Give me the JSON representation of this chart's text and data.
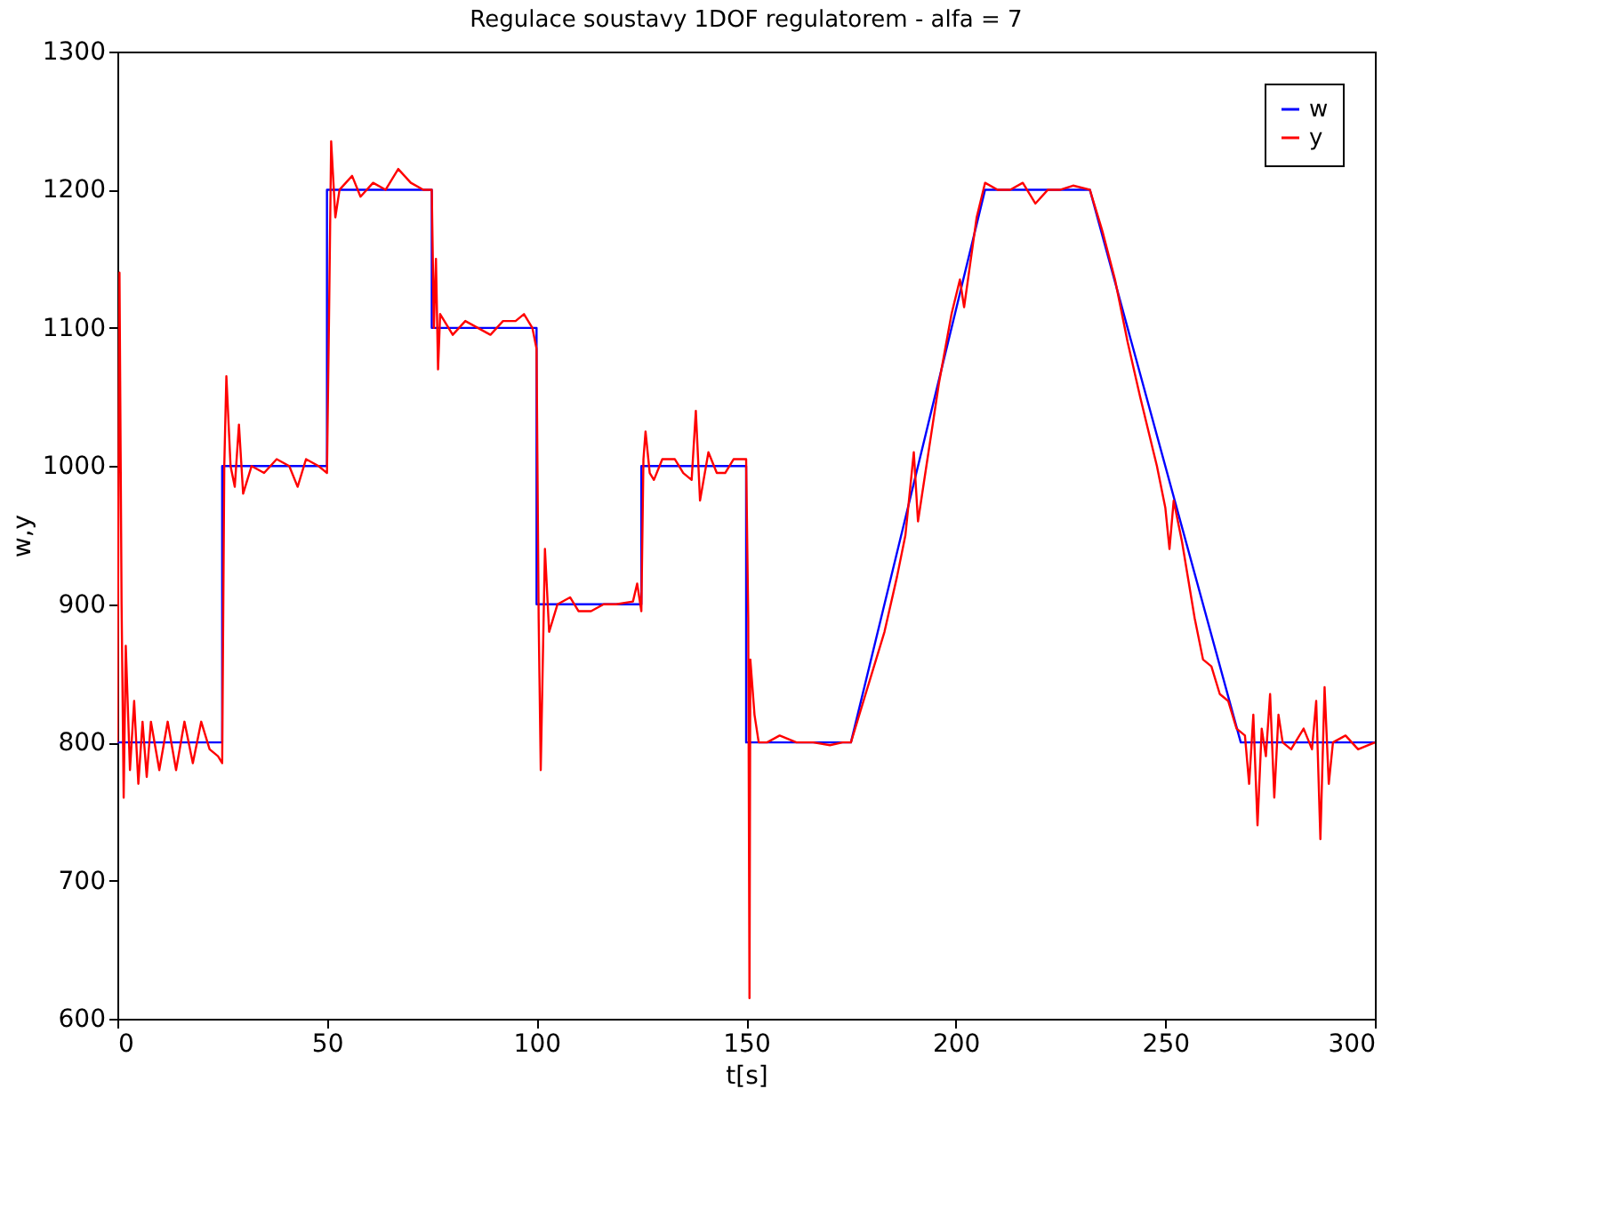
{
  "chart_data": {
    "type": "line",
    "title": "Regulace soustavy 1DOF regulatorem  - alfa = 7",
    "xlabel": "t[s]",
    "ylabel": "w,y",
    "xlim": [
      0,
      300
    ],
    "xticks": [
      0,
      50,
      100,
      150,
      200,
      250,
      300
    ],
    "ylim": [
      600,
      1300
    ],
    "yticks": [
      600,
      700,
      800,
      900,
      1000,
      1100,
      1200,
      1300
    ],
    "grid": false,
    "legend": "top right",
    "line_style": "solid",
    "marker": "none",
    "series": [
      {
        "name": "w",
        "color": "#0000ff",
        "x": [
          0,
          25,
          25,
          50,
          50,
          75,
          75,
          100,
          100,
          125,
          125,
          150,
          150,
          175,
          207,
          232,
          268,
          300
        ],
        "values": [
          800,
          800,
          1000,
          1000,
          1200,
          1200,
          1100,
          1100,
          900,
          900,
          1000,
          1000,
          800,
          800,
          1200,
          1200,
          800,
          800
        ]
      },
      {
        "name": "y",
        "color": "#ff0000",
        "x": [
          0,
          0.5,
          1,
          1.5,
          2,
          3,
          4,
          5,
          6,
          7,
          8,
          10,
          12,
          14,
          16,
          18,
          20,
          22,
          24,
          25,
          25.5,
          26,
          27,
          28,
          29,
          30,
          32,
          35,
          38,
          41,
          43,
          45,
          48,
          50,
          50.5,
          51,
          52,
          53,
          56,
          58,
          61,
          64,
          67,
          70,
          73,
          75,
          75.5,
          76,
          76.5,
          77,
          80,
          83,
          86,
          89,
          92,
          95,
          97,
          99,
          100,
          100.5,
          101,
          102,
          103,
          105,
          108,
          110,
          113,
          116,
          119,
          123,
          124,
          125,
          125.5,
          126,
          127,
          128,
          130,
          133,
          135,
          137,
          138,
          139,
          141,
          143,
          145,
          147,
          149,
          150,
          150.5,
          150.8,
          151,
          152,
          153,
          155,
          158,
          162,
          166,
          170,
          173,
          175,
          178,
          180,
          183,
          186,
          188,
          190,
          191,
          193,
          196,
          199,
          201,
          202,
          205,
          207,
          210,
          213,
          216,
          219,
          222,
          225,
          228,
          232,
          235,
          238,
          241,
          244,
          248,
          250,
          251,
          252,
          254,
          257,
          259,
          261,
          263,
          265,
          267,
          269,
          270,
          271,
          272,
          273,
          274,
          275,
          276,
          277,
          278,
          280,
          283,
          285,
          286,
          287,
          288,
          289,
          290,
          293,
          296,
          300
        ],
        "values": [
          800,
          1140,
          900,
          760,
          870,
          780,
          830,
          770,
          815,
          775,
          815,
          780,
          815,
          780,
          815,
          785,
          815,
          795,
          790,
          785,
          1000,
          1065,
          1000,
          985,
          1030,
          980,
          1000,
          995,
          1005,
          1000,
          985,
          1005,
          1000,
          995,
          1110,
          1235,
          1180,
          1200,
          1210,
          1195,
          1205,
          1200,
          1215,
          1205,
          1200,
          1200,
          1100,
          1150,
          1070,
          1110,
          1095,
          1105,
          1100,
          1095,
          1105,
          1105,
          1110,
          1100,
          1085,
          890,
          780,
          940,
          880,
          900,
          905,
          895,
          895,
          900,
          900,
          902,
          915,
          895,
          1005,
          1025,
          995,
          990,
          1005,
          1005,
          995,
          990,
          1040,
          975,
          1010,
          995,
          995,
          1005,
          1005,
          1005,
          890,
          615,
          860,
          820,
          800,
          800,
          805,
          800,
          800,
          798,
          800,
          800,
          830,
          850,
          880,
          920,
          950,
          1010,
          960,
          1000,
          1060,
          1110,
          1135,
          1115,
          1180,
          1205,
          1200,
          1200,
          1205,
          1190,
          1200,
          1200,
          1203,
          1200,
          1170,
          1135,
          1090,
          1050,
          1000,
          970,
          940,
          975,
          945,
          890,
          860,
          855,
          835,
          830,
          810,
          805,
          770,
          820,
          740,
          810,
          790,
          835,
          760,
          820,
          800,
          795,
          810,
          795,
          830,
          730,
          840,
          770,
          800,
          805,
          795,
          800
        ]
      }
    ]
  }
}
